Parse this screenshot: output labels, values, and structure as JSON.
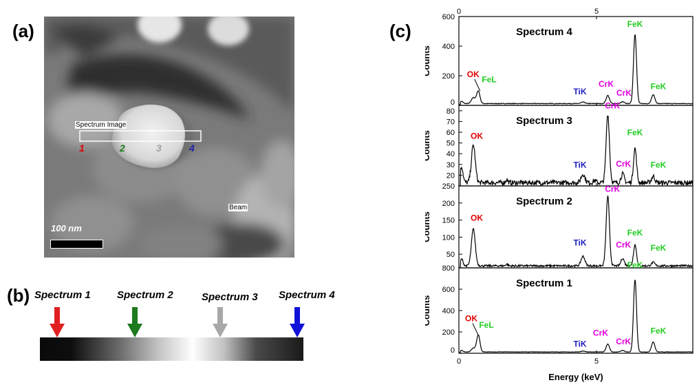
{
  "panels": {
    "a": "(a)",
    "b": "(b)",
    "c": "(c)"
  },
  "micrograph": {
    "spectrum_image_label": "Spectrum Image",
    "beam_label": "Beam",
    "scale_bar_label": "100 nm",
    "points": [
      {
        "label": "1",
        "color": "#e00000"
      },
      {
        "label": "2",
        "color": "#1a7a1a"
      },
      {
        "label": "3",
        "color": "#a0a0a0"
      },
      {
        "label": "4",
        "color": "#2222a8"
      }
    ]
  },
  "stripe": {
    "labels": [
      "Spectrum 1",
      "Spectrum 2",
      "Spectrum 3",
      "Spectrum 4"
    ],
    "arrow_colors": [
      "#e02020",
      "#1d7a1d",
      "#a8a8a8",
      "#1010d8"
    ]
  },
  "colors": {
    "O": "#e00000",
    "Fe": "#22cc22",
    "Cr": "#e000e0",
    "Ti": "#2020c0"
  },
  "chart_data": {
    "type": "line",
    "xlabel": "Energy (keV)",
    "xlim": [
      0,
      8.5
    ],
    "x_ticks": [
      0,
      5
    ],
    "panels": [
      {
        "title": "Spectrum 4",
        "ylabel": "Counts",
        "ylim": [
          0,
          600
        ],
        "yticks": [
          0,
          200,
          400,
          600
        ],
        "baseline": 12,
        "peaks": [
          [
            0.1,
            15,
            0.05
          ],
          [
            0.525,
            40,
            0.07
          ],
          [
            0.705,
            85,
            0.06
          ],
          [
            4.51,
            10,
            0.07
          ],
          [
            5.41,
            55,
            0.06
          ],
          [
            5.95,
            12,
            0.06
          ],
          [
            6.4,
            470,
            0.055
          ],
          [
            7.06,
            60,
            0.06
          ]
        ],
        "labels": [
          {
            "text": "OK",
            "el": "O",
            "x": 0.52,
            "y": 190
          },
          {
            "text": "FeL",
            "el": "Fe",
            "x": 1.1,
            "y": 155
          },
          {
            "text": "TiK",
            "el": "Ti",
            "x": 4.4,
            "y": 75
          },
          {
            "text": "CrK",
            "el": "Cr",
            "x": 5.35,
            "y": 125
          },
          {
            "text": "CrK",
            "el": "Cr",
            "x": 6.0,
            "y": 65
          },
          {
            "text": "FeK",
            "el": "Fe",
            "x": 6.4,
            "y": 530
          },
          {
            "text": "FeK",
            "el": "Fe",
            "x": 7.25,
            "y": 110
          }
        ]
      },
      {
        "title": "Spectrum 3",
        "ylabel": "Counts",
        "ylim": [
          10,
          85
        ],
        "yticks": [
          20,
          30,
          40,
          50,
          60,
          70,
          80
        ],
        "baseline": 13,
        "peaks": [
          [
            0.1,
            15,
            0.05
          ],
          [
            0.525,
            35,
            0.07
          ],
          [
            1.74,
            3,
            0.04
          ],
          [
            4.51,
            8,
            0.07
          ],
          [
            4.93,
            2,
            0.05
          ],
          [
            5.41,
            64,
            0.06
          ],
          [
            5.95,
            8,
            0.06
          ],
          [
            6.4,
            32,
            0.055
          ],
          [
            7.06,
            6,
            0.06
          ]
        ],
        "labels": [
          {
            "text": "OK",
            "el": "O",
            "x": 0.65,
            "y": 54
          },
          {
            "text": "TiK",
            "el": "Ti",
            "x": 4.4,
            "y": 27
          },
          {
            "text": "CrK",
            "el": "Cr",
            "x": 5.58,
            "y": 82
          },
          {
            "text": "CrK",
            "el": "Cr",
            "x": 5.98,
            "y": 28
          },
          {
            "text": "FeK",
            "el": "Fe",
            "x": 6.4,
            "y": 57
          },
          {
            "text": "FeK",
            "el": "Fe",
            "x": 7.25,
            "y": 27
          }
        ]
      },
      {
        "title": "Spectrum 2",
        "ylabel": "Counts",
        "ylim": [
          10,
          250
        ],
        "yticks": [
          50,
          100,
          150,
          200,
          250
        ],
        "baseline": 16,
        "peaks": [
          [
            0.1,
            20,
            0.05
          ],
          [
            0.525,
            108,
            0.07
          ],
          [
            1.74,
            5,
            0.04
          ],
          [
            4.51,
            28,
            0.07
          ],
          [
            5.41,
            204,
            0.06
          ],
          [
            5.95,
            22,
            0.06
          ],
          [
            6.4,
            62,
            0.055
          ],
          [
            7.06,
            10,
            0.06
          ]
        ],
        "labels": [
          {
            "text": "OK",
            "el": "O",
            "x": 0.65,
            "y": 148
          },
          {
            "text": "TiK",
            "el": "Ti",
            "x": 4.4,
            "y": 76
          },
          {
            "text": "CrK",
            "el": "Cr",
            "x": 5.58,
            "y": 233
          },
          {
            "text": "CrK",
            "el": "Cr",
            "x": 5.98,
            "y": 70
          },
          {
            "text": "FeK",
            "el": "Fe",
            "x": 6.4,
            "y": 105
          },
          {
            "text": "FeK",
            "el": "Fe",
            "x": 7.25,
            "y": 60
          }
        ]
      },
      {
        "title": "Spectrum 1",
        "ylabel": "Counts",
        "ylim": [
          0,
          800
        ],
        "yticks": [
          0,
          200,
          400,
          600,
          800
        ],
        "baseline": 12,
        "peaks": [
          [
            0.1,
            15,
            0.05
          ],
          [
            0.525,
            35,
            0.07
          ],
          [
            0.705,
            160,
            0.06
          ],
          [
            4.51,
            8,
            0.07
          ],
          [
            5.41,
            75,
            0.06
          ],
          [
            5.95,
            15,
            0.06
          ],
          [
            6.4,
            680,
            0.055
          ],
          [
            7.06,
            95,
            0.06
          ]
        ],
        "labels": [
          {
            "text": "OK",
            "el": "O",
            "x": 0.45,
            "y": 300
          },
          {
            "text": "FeL",
            "el": "Fe",
            "x": 1.0,
            "y": 240
          },
          {
            "text": "TiK",
            "el": "Ti",
            "x": 4.4,
            "y": 60
          },
          {
            "text": "CrK",
            "el": "Cr",
            "x": 5.15,
            "y": 165
          },
          {
            "text": "CrK",
            "el": "Cr",
            "x": 5.98,
            "y": 85
          },
          {
            "text": "FeK",
            "el": "Fe",
            "x": 6.4,
            "y": 800
          },
          {
            "text": "FeK",
            "el": "Fe",
            "x": 7.25,
            "y": 185
          }
        ]
      }
    ]
  }
}
